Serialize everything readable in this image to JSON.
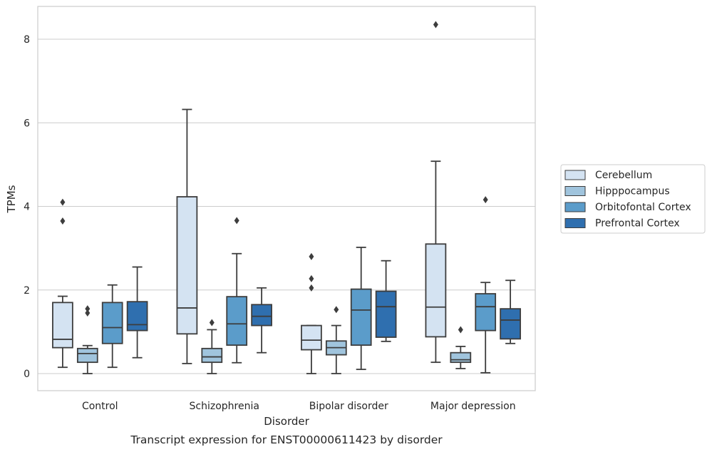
{
  "chart_data": {
    "type": "box",
    "title": "",
    "caption": "Transcript expression for ENST00000611423 by disorder",
    "xlabel": "Disorder",
    "ylabel": "TPMs",
    "ylim": [
      -0.4,
      8.8
    ],
    "yticks": [
      0,
      2,
      4,
      6,
      8
    ],
    "grid": "horizontal",
    "legend_position": "right",
    "categories": [
      "Control",
      "Schizophrenia",
      "Bipolar disorder",
      "Major depression"
    ],
    "series": [
      {
        "name": "Cerebellum",
        "color": "#d4e3f2",
        "boxes": [
          {
            "whislo": 0.15,
            "q1": 0.62,
            "med": 0.82,
            "q3": 1.7,
            "whishi": 1.85,
            "fliers": [
              3.65,
              4.1
            ]
          },
          {
            "whislo": 0.24,
            "q1": 0.95,
            "med": 1.57,
            "q3": 4.23,
            "whishi": 6.32,
            "fliers": []
          },
          {
            "whislo": 0.0,
            "q1": 0.57,
            "med": 0.8,
            "q3": 1.15,
            "whishi": 1.15,
            "fliers": [
              2.05,
              2.27,
              2.8
            ]
          },
          {
            "whislo": 0.27,
            "q1": 0.88,
            "med": 1.59,
            "q3": 3.1,
            "whishi": 5.08,
            "fliers": [
              8.35
            ]
          }
        ]
      },
      {
        "name": "Hipppocampus",
        "color": "#a0c4dd",
        "boxes": [
          {
            "whislo": 0.0,
            "q1": 0.27,
            "med": 0.48,
            "q3": 0.6,
            "whishi": 0.67,
            "fliers": [
              1.45,
              1.55
            ]
          },
          {
            "whislo": 0.0,
            "q1": 0.27,
            "med": 0.4,
            "q3": 0.6,
            "whishi": 1.05,
            "fliers": [
              1.22
            ]
          },
          {
            "whislo": 0.0,
            "q1": 0.45,
            "med": 0.62,
            "q3": 0.78,
            "whishi": 1.15,
            "fliers": [
              1.53
            ]
          },
          {
            "whislo": 0.12,
            "q1": 0.27,
            "med": 0.33,
            "q3": 0.5,
            "whishi": 0.65,
            "fliers": [
              1.05
            ]
          }
        ]
      },
      {
        "name": "Orbitofontal Cortex",
        "color": "#5b9cca",
        "boxes": [
          {
            "whislo": 0.15,
            "q1": 0.72,
            "med": 1.1,
            "q3": 1.7,
            "whishi": 2.12,
            "fliers": []
          },
          {
            "whislo": 0.26,
            "q1": 0.68,
            "med": 1.19,
            "q3": 1.84,
            "whishi": 2.87,
            "fliers": [
              3.66
            ]
          },
          {
            "whislo": 0.1,
            "q1": 0.68,
            "med": 1.52,
            "q3": 2.02,
            "whishi": 3.02,
            "fliers": []
          },
          {
            "whislo": 0.02,
            "q1": 1.03,
            "med": 1.6,
            "q3": 1.91,
            "whishi": 2.18,
            "fliers": [
              4.16
            ]
          }
        ]
      },
      {
        "name": "Prefrontal Cortex",
        "color": "#2f6faf",
        "boxes": [
          {
            "whislo": 0.38,
            "q1": 1.03,
            "med": 1.17,
            "q3": 1.72,
            "whishi": 2.55,
            "fliers": []
          },
          {
            "whislo": 0.5,
            "q1": 1.15,
            "med": 1.37,
            "q3": 1.65,
            "whishi": 2.05,
            "fliers": []
          },
          {
            "whislo": 0.77,
            "q1": 0.87,
            "med": 1.6,
            "q3": 1.97,
            "whishi": 2.7,
            "fliers": []
          },
          {
            "whislo": 0.72,
            "q1": 0.83,
            "med": 1.28,
            "q3": 1.55,
            "whishi": 2.23,
            "fliers": []
          }
        ]
      }
    ]
  }
}
